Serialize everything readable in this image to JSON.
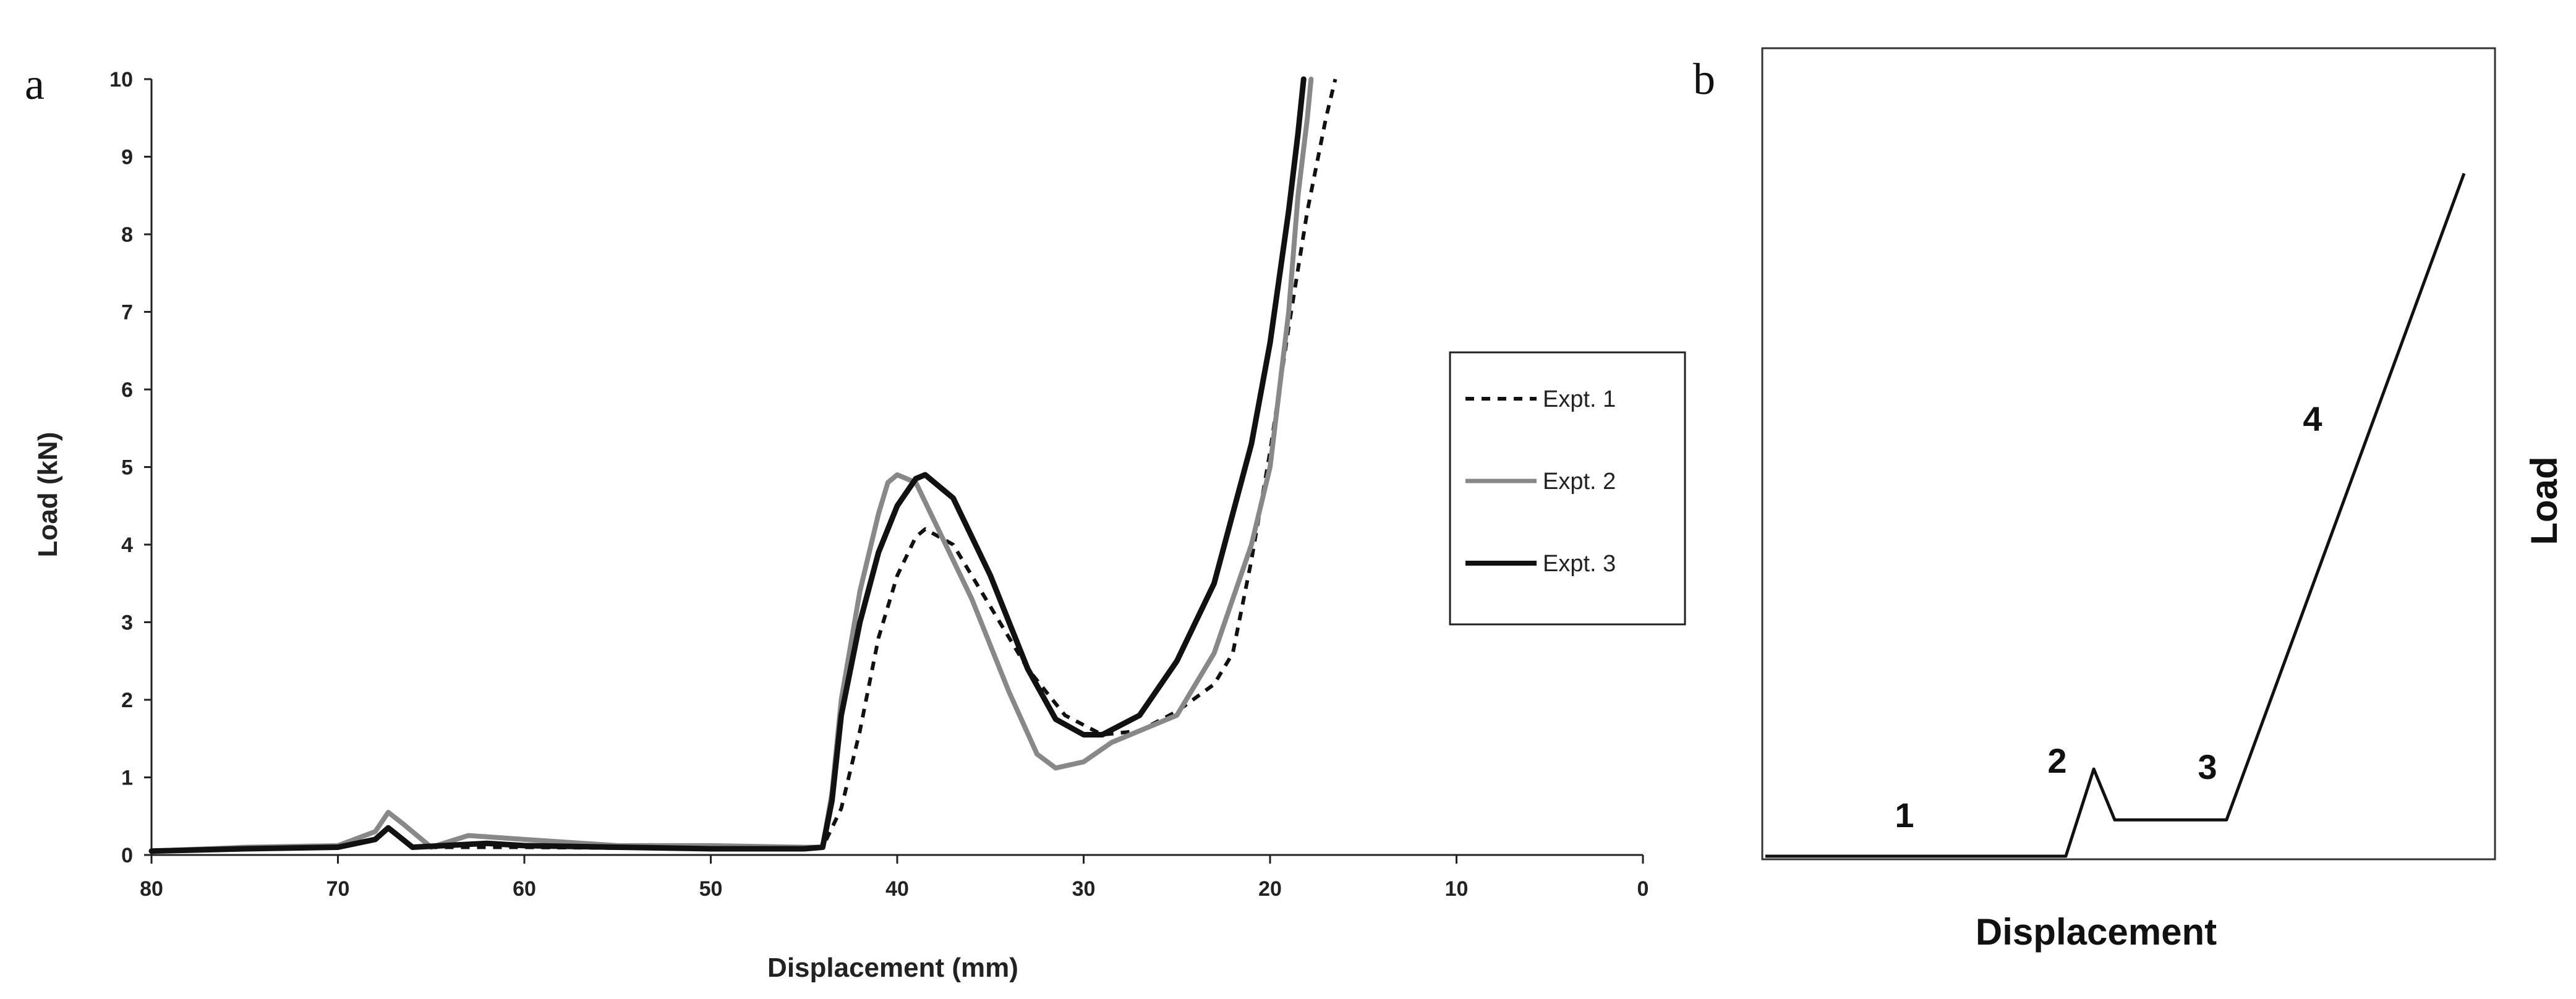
{
  "chart_data": [
    {
      "panel": "a",
      "type": "line",
      "title": "",
      "xlabel": "Displacement (mm)",
      "ylabel": "Load (kN)",
      "xlim": [
        80,
        0
      ],
      "ylim": [
        0,
        10
      ],
      "x_reversed": true,
      "x_ticks": [
        "80",
        "70",
        "60",
        "50",
        "40",
        "30",
        "20",
        "10",
        "0"
      ],
      "y_ticks": [
        "0",
        "1",
        "2",
        "3",
        "4",
        "5",
        "6",
        "7",
        "8",
        "9",
        "10"
      ],
      "legend_position": "right",
      "series": [
        {
          "name": "Expt. 1",
          "style": "dashed",
          "color": "#111111",
          "points": [
            [
              80,
              0.05
            ],
            [
              75,
              0.08
            ],
            [
              70,
              0.1
            ],
            [
              68,
              0.2
            ],
            [
              67.3,
              0.35
            ],
            [
              66,
              0.1
            ],
            [
              60,
              0.1
            ],
            [
              50,
              0.08
            ],
            [
              45,
              0.08
            ],
            [
              44,
              0.1
            ],
            [
              43,
              0.6
            ],
            [
              42,
              1.6
            ],
            [
              41,
              2.8
            ],
            [
              40,
              3.6
            ],
            [
              39,
              4.1
            ],
            [
              38.5,
              4.2
            ],
            [
              37,
              4.0
            ],
            [
              35,
              3.2
            ],
            [
              33,
              2.4
            ],
            [
              31,
              1.8
            ],
            [
              29,
              1.55
            ],
            [
              27,
              1.6
            ],
            [
              25,
              1.85
            ],
            [
              23,
              2.2
            ],
            [
              22,
              2.6
            ],
            [
              21,
              3.8
            ],
            [
              20,
              5.2
            ],
            [
              19,
              6.8
            ],
            [
              18,
              8.3
            ],
            [
              17,
              9.5
            ],
            [
              16.5,
              10
            ]
          ]
        },
        {
          "name": "Expt. 2",
          "style": "solid",
          "color": "#888888",
          "points": [
            [
              80,
              0.05
            ],
            [
              75,
              0.1
            ],
            [
              70,
              0.12
            ],
            [
              68,
              0.3
            ],
            [
              67.3,
              0.55
            ],
            [
              66.5,
              0.4
            ],
            [
              65,
              0.1
            ],
            [
              63,
              0.25
            ],
            [
              60,
              0.2
            ],
            [
              55,
              0.12
            ],
            [
              50,
              0.12
            ],
            [
              45,
              0.1
            ],
            [
              44,
              0.1
            ],
            [
              43.5,
              0.8
            ],
            [
              43,
              2.0
            ],
            [
              42,
              3.4
            ],
            [
              41,
              4.4
            ],
            [
              40.5,
              4.8
            ],
            [
              40,
              4.9
            ],
            [
              39,
              4.8
            ],
            [
              38,
              4.3
            ],
            [
              36,
              3.3
            ],
            [
              34,
              2.1
            ],
            [
              32.5,
              1.3
            ],
            [
              31.5,
              1.12
            ],
            [
              30,
              1.2
            ],
            [
              28.5,
              1.45
            ],
            [
              27,
              1.6
            ],
            [
              25,
              1.8
            ],
            [
              23,
              2.6
            ],
            [
              21,
              4.0
            ],
            [
              20,
              5.0
            ],
            [
              19,
              7.0
            ],
            [
              18.5,
              8.5
            ],
            [
              18,
              9.5
            ],
            [
              17.8,
              10
            ]
          ]
        },
        {
          "name": "Expt. 3",
          "style": "solid",
          "color": "#111111",
          "points": [
            [
              80,
              0.05
            ],
            [
              75,
              0.08
            ],
            [
              70,
              0.1
            ],
            [
              68,
              0.2
            ],
            [
              67.3,
              0.35
            ],
            [
              66,
              0.1
            ],
            [
              62,
              0.15
            ],
            [
              60,
              0.12
            ],
            [
              55,
              0.1
            ],
            [
              50,
              0.08
            ],
            [
              45,
              0.08
            ],
            [
              44,
              0.1
            ],
            [
              43.5,
              0.7
            ],
            [
              43,
              1.8
            ],
            [
              42,
              3.0
            ],
            [
              41,
              3.9
            ],
            [
              40,
              4.5
            ],
            [
              39,
              4.85
            ],
            [
              38.5,
              4.9
            ],
            [
              37,
              4.6
            ],
            [
              35,
              3.6
            ],
            [
              33,
              2.4
            ],
            [
              31.5,
              1.75
            ],
            [
              30,
              1.55
            ],
            [
              29,
              1.55
            ],
            [
              27,
              1.8
            ],
            [
              25,
              2.5
            ],
            [
              23,
              3.5
            ],
            [
              21,
              5.3
            ],
            [
              20,
              6.6
            ],
            [
              19,
              8.3
            ],
            [
              18.5,
              9.3
            ],
            [
              18.2,
              10
            ]
          ]
        }
      ]
    },
    {
      "panel": "b",
      "type": "line",
      "title": "",
      "xlabel": "Displacement",
      "ylabel": "Load",
      "segment_labels": [
        "1",
        "2",
        "3",
        "4"
      ],
      "series": [
        {
          "style": "solid",
          "color": "#111111",
          "points": [
            [
              0,
              0
            ],
            [
              0.43,
              0
            ],
            [
              0.47,
              1.2
            ],
            [
              0.5,
              0.5
            ],
            [
              0.66,
              0.5
            ],
            [
              1,
              9.4
            ]
          ]
        }
      ]
    }
  ]
}
